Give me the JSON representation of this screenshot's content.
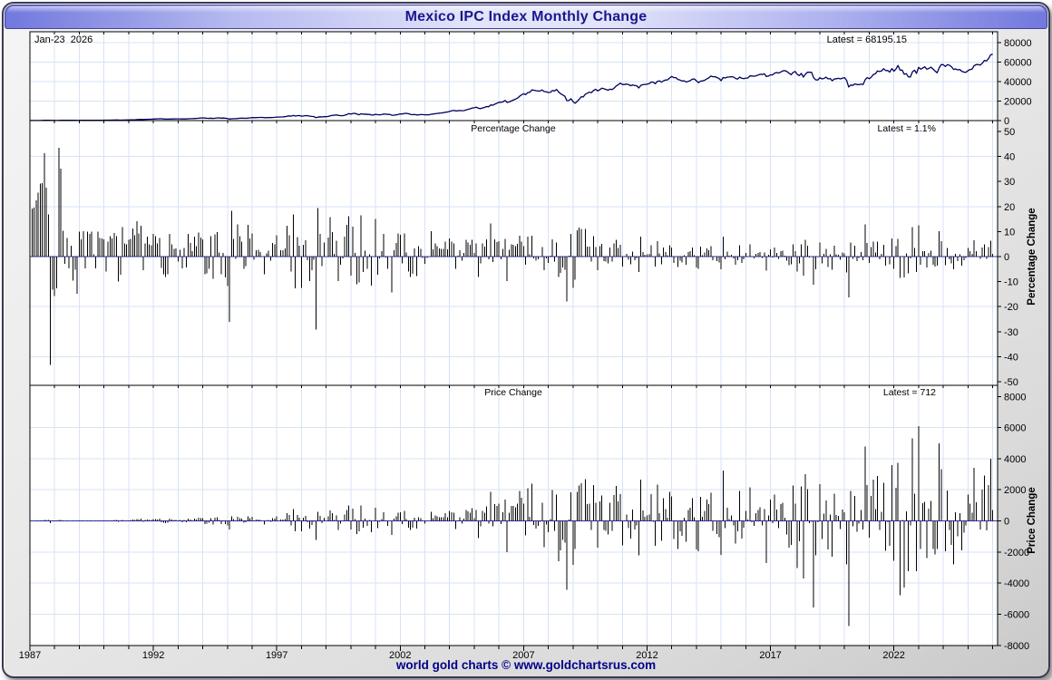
{
  "window": {
    "title": "Mexico IPC Index Monthly Change",
    "footer": "world gold charts © www.goldchartsrus.com"
  },
  "chart_data": {
    "type": "multi-panel-monthly-timeseries",
    "title": "Mexico IPC Index Monthly Change",
    "date_label": "Jan-23  2026",
    "x_axis": {
      "domain_years": [
        1987.0,
        2026.2
      ],
      "tick_years": [
        1987,
        1992,
        1997,
        2002,
        2007,
        2012,
        2017,
        2022
      ],
      "minor_tick_every_years": 1,
      "grid": "yearly"
    },
    "panels": [
      {
        "id": "index_level",
        "type": "line",
        "latest_label": "Latest = 68195.15",
        "latest_value": 68195.15,
        "ylim": [
          0,
          80000
        ],
        "yticks": [
          80000,
          60000,
          40000,
          20000,
          0
        ],
        "gridlines": [
          20000,
          40000,
          60000,
          80000
        ],
        "series_source": "monthly_values"
      },
      {
        "id": "percentage_change",
        "type": "bar",
        "caption": "Percentage Change",
        "axis_title": "Percentage Change",
        "latest_label": "Latest = 1.1%",
        "latest_value": 1.1,
        "ylim": [
          -50,
          50
        ],
        "yticks": [
          50,
          40,
          30,
          20,
          10,
          0,
          -10,
          -20,
          -30,
          -40,
          -50
        ],
        "gridlines": [
          40,
          20,
          -20,
          -40
        ],
        "derived": "month_over_month_percent_of_monthly_values"
      },
      {
        "id": "price_change",
        "type": "bar",
        "caption": "Price Change",
        "axis_title": "Price Change",
        "latest_label": "Latest = 712",
        "latest_value": 712,
        "ylim": [
          -8000,
          8000
        ],
        "yticks": [
          8000,
          6000,
          4000,
          2000,
          0,
          -2000,
          -4000,
          -6000,
          -8000
        ],
        "gridlines": [
          6000,
          4000,
          2000,
          -2000,
          -4000,
          -6000
        ],
        "derived": "month_over_month_difference_of_monthly_values"
      }
    ],
    "start_year": 1987,
    "start_month": 1,
    "monthly_values": [
      47,
      56,
      67,
      82,
      103,
      133,
      172,
      243,
      310,
      362,
      205,
      178,
      150,
      131,
      188,
      254,
      280,
      272,
      292,
      278,
      290,
      262,
      248,
      211,
      232,
      248,
      273,
      260,
      286,
      312,
      343,
      346,
      330,
      363,
      390,
      418,
      447,
      420,
      445,
      481,
      516,
      565,
      611,
      550,
      510,
      570,
      600,
      629,
      671,
      719,
      800,
      868,
      990,
      1081,
      1214,
      1148,
      1208,
      1305,
      1368,
      1431,
      1560,
      1686,
      1775,
      1907,
      1820,
      1693,
      1555,
      1444,
      1576,
      1652,
      1702,
      1759,
      1723,
      1771,
      1688,
      1745,
      1670,
      1822,
      1920,
      1961,
      2118,
      2207,
      2420,
      2603,
      2781,
      2585,
      2410,
      2294,
      2483,
      2262,
      2462,
      2702,
      2746,
      2552,
      2591,
      2376,
      2096,
      1549,
      1833,
      1963,
      1945,
      2196,
      2375,
      2517,
      2392,
      2301,
      2591,
      2778,
      3036,
      2998,
      3072,
      3154,
      3211,
      3211,
      2983,
      3021,
      3091,
      3041,
      3207,
      3361,
      3647,
      3654,
      3748,
      3841,
      3968,
      4458,
      4841,
      4552,
      5322,
      4648,
      5013,
      5229,
      4571,
      4784,
      5100,
      5023,
      4530,
      4282,
      4226,
      2992,
      3570,
      3896,
      3751,
      3960,
      3958,
      4261,
      4930,
      5415,
      5478,
      5830,
      5260,
      5086,
      5050,
      5450,
      6137,
      7130,
      6586,
      7369,
      7473,
      6641,
      5961,
      6948,
      6514,
      6665,
      6335,
      6394,
      5653,
      5652,
      6497,
      6032,
      5987,
      6113,
      6666,
      6640,
      6310,
      6311,
      5404,
      5537,
      5833,
      6372,
      6928,
      6734,
      7362,
      7481,
      7032,
      6461,
      6022,
      6216,
      5728,
      5968,
      6157,
      6127,
      5954,
      5927,
      5914,
      6510,
      6699,
      7055,
      7355,
      7591,
      7822,
      8065,
      8554,
      8795,
      9429,
      9992,
      10518,
      9998,
      10036,
      10282,
      10116,
      10264,
      10957,
      11564,
      12103,
      12918,
      13097,
      13789,
      12677,
      12323,
      12964,
      13486,
      14410,
      14243,
      16120,
      15760,
      16831,
      17803,
      18907,
      18706,
      19273,
      20646,
      18633,
      19147,
      20096,
      21049,
      21937,
      23047,
      24962,
      26448,
      27561,
      26639,
      28748,
      28997,
      31399,
      31151,
      30660,
      30348,
      30296,
      31459,
      29771,
      29537,
      28794,
      28919,
      30913,
      30281,
      31975,
      29395,
      27501,
      26291,
      24889,
      20445,
      20535,
      22380,
      19565,
      17752,
      19627,
      21899,
      24332,
      24368,
      27044,
      28130,
      29232,
      28646,
      30957,
      32120,
      30392,
      31635,
      33266,
      32687,
      32039,
      31157,
      32309,
      31680,
      33330,
      35568,
      36817,
      38551,
      36982,
      37020,
      37441,
      36963,
      35833,
      36558,
      35999,
      35721,
      33503,
      36160,
      36829,
      37078,
      37422,
      37816,
      39521,
      39461,
      37872,
      40199,
      40704,
      39422,
      40867,
      41620,
      41834,
      43706,
      45278,
      44121,
      44077,
      42263,
      41588,
      40623,
      40838,
      39492,
      40185,
      41039,
      42499,
      42727,
      40879,
      38913,
      40462,
      40712,
      41363,
      42737,
      43818,
      45628,
      44986,
      45028,
      44190,
      43146,
      40951,
      44190,
      43725,
      44582,
      44704,
      45054,
      44753,
      43290,
      42633,
      44543,
      43419,
      42978,
      43631,
      43715,
      45881,
      45785,
      45459,
      45966,
      46661,
      47541,
      47246,
      48009,
      45286,
      45643,
      47001,
      46857,
      48542,
      49261,
      48788,
      49857,
      51012,
      51210,
      50346,
      48626,
      47092,
      49354,
      50456,
      47438,
      46125,
      48354,
      44663,
      47663,
      49698,
      49548,
      49504,
      43943,
      41733,
      41640,
      43988,
      42824,
      43281,
      44597,
      42749,
      43161,
      40863,
      42622,
      43011,
      43337,
      42820,
      43541,
      44108,
      41324,
      34554,
      36470,
      36122,
      37716,
      37020,
      36841,
      37533,
      36988,
      41779,
      44067,
      42986,
      44593,
      47246,
      48010,
      50886,
      50290,
      50868,
      53305,
      51386,
      51310,
      49699,
      53272,
      50704,
      52818,
      56537,
      51753,
      51818,
      47524,
      48144,
      44919,
      44627,
      49922,
      51685,
      48464,
      54564,
      52758,
      53904,
      55121,
      52736,
      53526,
      54819,
      53021,
      50875,
      49062,
      54060,
      57386,
      57373,
      55414,
      57369,
      56776,
      55235,
      52440,
      52986,
      51986,
      52477,
      50576,
      49813,
      49513,
      51209,
      52326,
      52848,
      56259,
      57451,
      57450,
      56890,
      58900,
      61800,
      61200,
      63500,
      67483,
      68195.15
    ]
  },
  "colors": {
    "title_text": "#18188e",
    "titlebar_gradient_edge": "#7278dd",
    "titlebar_gradient_center": "#e3e3fa",
    "grid": "#d7e3f4",
    "zero_line": "#3434b8",
    "bars": "#000000",
    "index_line": "#00005e",
    "footer_text": "#00008b",
    "plot_background": "#ffffff",
    "window_background": "#e9e9e9"
  }
}
